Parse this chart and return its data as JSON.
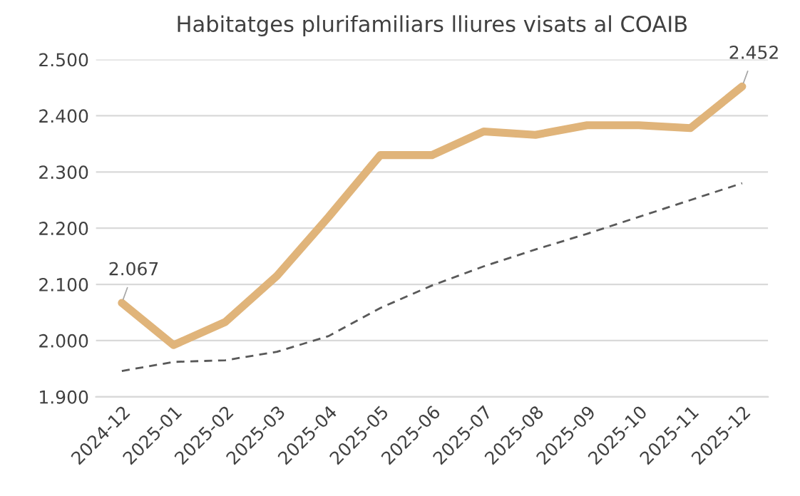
{
  "chart_data": {
    "type": "line",
    "title": "Habitatges plurifamiliars lliures visats al COAIB",
    "categories": [
      "2024-12",
      "2025-01",
      "2025-02",
      "2025-03",
      "2025-04",
      "2025-05",
      "2025-06",
      "2025-07",
      "2025-08",
      "2025-09",
      "2025-10",
      "2025-11",
      "2025-12"
    ],
    "series": [
      {
        "color": "#e0b47a",
        "line_style": "solid",
        "values": [
          2067,
          1992,
          2033,
          2115,
          2220,
          2330,
          2330,
          2372,
          2366,
          2383,
          2383,
          2378,
          2452
        ],
        "value_labels": [
          "2.067",
          null,
          null,
          null,
          null,
          null,
          null,
          null,
          null,
          null,
          null,
          null,
          "2.452"
        ]
      },
      {
        "color": "#595959",
        "line_style": "dashed",
        "values": [
          1946,
          1962,
          1965,
          1980,
          2008,
          2058,
          2098,
          2132,
          2162,
          2190,
          2220,
          2250,
          2280
        ]
      }
    ],
    "ylim": [
      1900,
      2500
    ],
    "yticks": [
      {
        "value": 1900,
        "label": "1.900"
      },
      {
        "value": 2000,
        "label": "2.000"
      },
      {
        "value": 2100,
        "label": "2.100"
      },
      {
        "value": 2200,
        "label": "2.200"
      },
      {
        "value": 2300,
        "label": "2.300"
      },
      {
        "value": 2400,
        "label": "2.400"
      },
      {
        "value": 2500,
        "label": "2.500"
      }
    ],
    "grid": "y",
    "legend": false,
    "marker": "none"
  }
}
